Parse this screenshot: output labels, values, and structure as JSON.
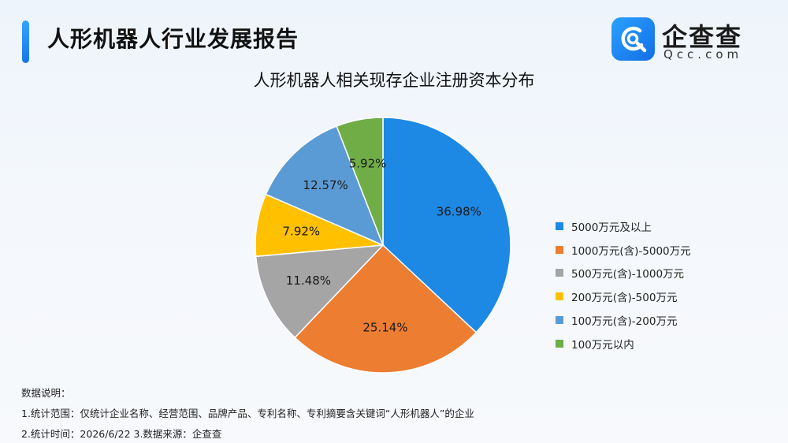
{
  "header": {
    "title": "人形机器人行业发展报告"
  },
  "logo": {
    "name": "企查查",
    "domain": "Qcc.com",
    "icon": "qcc-logo-icon",
    "brand_color": "#1f8cf2"
  },
  "chart_data": {
    "type": "pie",
    "title": "人形机器人相关现存企业注册资本分布",
    "legend_position": "right",
    "slices": [
      {
        "label": "5000万元及以上",
        "value": 36.98,
        "value_label": "36.98%",
        "color": "#1e88e5"
      },
      {
        "label": "1000万元(含)-5000万元",
        "value": 25.14,
        "value_label": "25.14%",
        "color": "#ed7d31"
      },
      {
        "label": "500万元(含)-1000万元",
        "value": 11.48,
        "value_label": "11.48%",
        "color": "#a5a5a5"
      },
      {
        "label": "200万元(含)-500万元",
        "value": 7.92,
        "value_label": "7.92%",
        "color": "#ffc000"
      },
      {
        "label": "100万元(含)-200万元",
        "value": 12.57,
        "value_label": "12.57%",
        "color": "#5b9bd5"
      },
      {
        "label": "100万元以内",
        "value": 5.92,
        "value_label": "5.92%",
        "color": "#70ad47"
      }
    ]
  },
  "notes": {
    "heading": "数据说明：",
    "line1": "1.统计范围：仅统计企业名称、经营范围、品牌产品、专利名称、专利摘要含关键词“人形机器人”的企业",
    "line2": "2.统计时间：2026/6/22  3.数据来源：企查查"
  }
}
